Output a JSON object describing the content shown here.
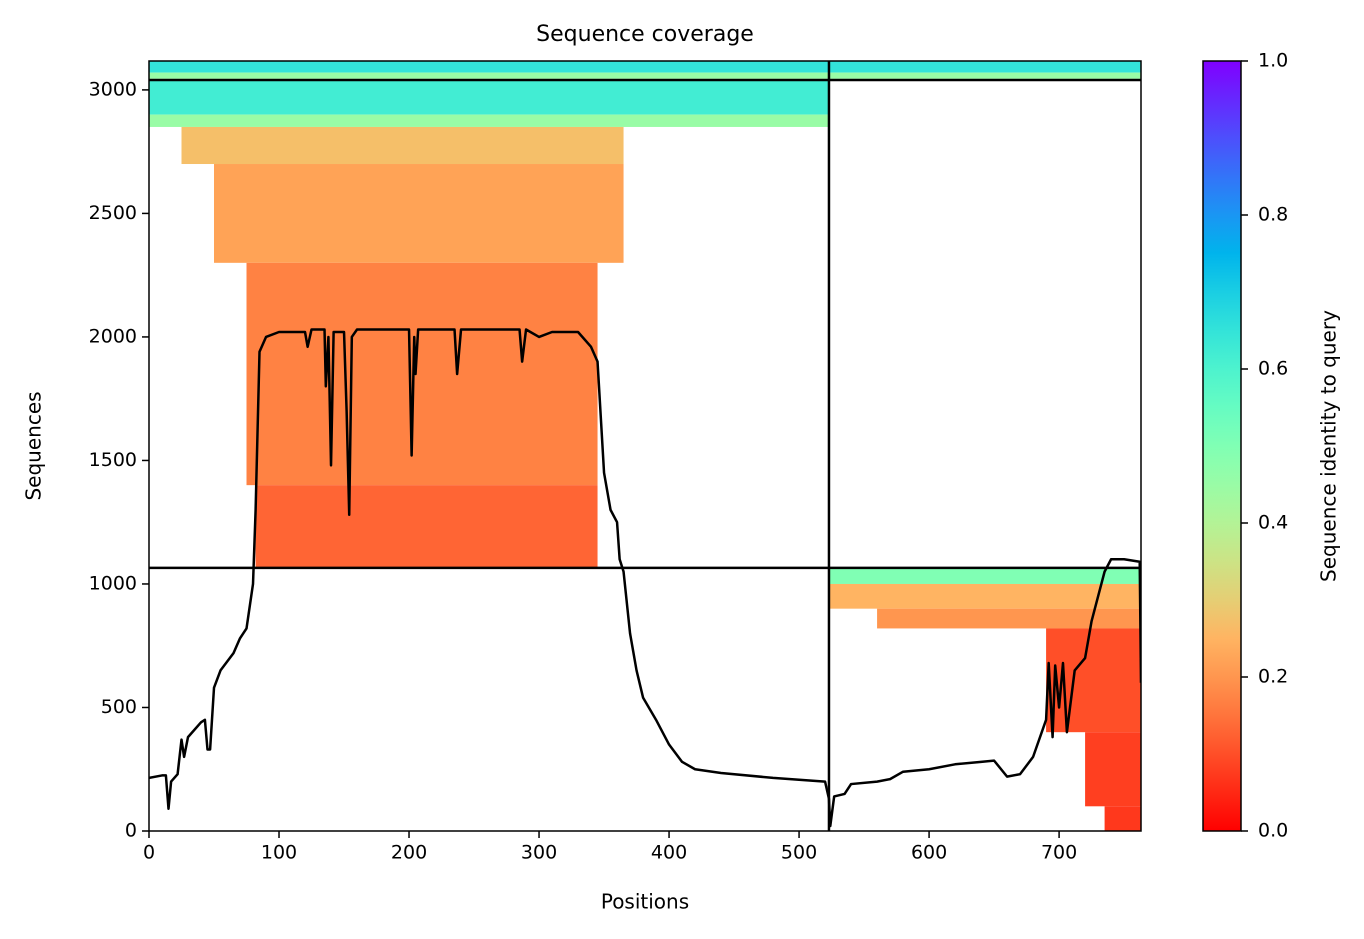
{
  "chart_data": {
    "type": "coverage",
    "title": "Sequence coverage",
    "x_label": "Positions",
    "y_label": "Sequences",
    "xlim": [
      0,
      763
    ],
    "ylim": [
      0,
      3117
    ],
    "xticks": [
      0,
      100,
      200,
      300,
      400,
      500,
      600,
      700
    ],
    "yticks": [
      0,
      500,
      1000,
      1500,
      2000,
      2500,
      3000
    ],
    "line": {
      "color": "#000000",
      "x": [
        0,
        10,
        13,
        15,
        17,
        22,
        25,
        27,
        30,
        40,
        43,
        45,
        47,
        50,
        55,
        65,
        70,
        75,
        80,
        82,
        85,
        90,
        100,
        120,
        122,
        125,
        135,
        136,
        138,
        140,
        142,
        150,
        152,
        154,
        156,
        160,
        200,
        202,
        204,
        205,
        207,
        235,
        237,
        240,
        285,
        287,
        290,
        300,
        310,
        330,
        340,
        345,
        350,
        355,
        360,
        362,
        365,
        370,
        375,
        380,
        390,
        400,
        410,
        420,
        440,
        480,
        520,
        523,
        524,
        527,
        535,
        540,
        560,
        570,
        580,
        600,
        620,
        640,
        650,
        660,
        670,
        680,
        690,
        692,
        695,
        697,
        700,
        703,
        706,
        712,
        720,
        725,
        730,
        735,
        740,
        750,
        762,
        763
      ],
      "values": [
        215,
        225,
        225,
        90,
        200,
        230,
        370,
        300,
        380,
        440,
        450,
        330,
        330,
        580,
        650,
        720,
        780,
        820,
        1000,
        1300,
        1940,
        2000,
        2020,
        2020,
        1960,
        2030,
        2030,
        1800,
        2000,
        1480,
        2020,
        2020,
        1700,
        1280,
        2000,
        2030,
        2030,
        1520,
        2000,
        1850,
        2030,
        2030,
        1850,
        2030,
        2030,
        1900,
        2030,
        2000,
        2020,
        2020,
        1960,
        1900,
        1450,
        1300,
        1250,
        1100,
        1050,
        800,
        650,
        540,
        450,
        350,
        280,
        250,
        235,
        215,
        200,
        130,
        20,
        140,
        150,
        190,
        200,
        210,
        240,
        250,
        270,
        280,
        285,
        220,
        230,
        300,
        450,
        680,
        380,
        670,
        500,
        680,
        400,
        650,
        700,
        850,
        950,
        1050,
        1100,
        1100,
        1090,
        600
      ]
    },
    "blocks": [
      {
        "x0": 0,
        "x1": 763,
        "y0": 3070,
        "y1": 3117,
        "identity": 0.65
      },
      {
        "x0": 0,
        "x1": 763,
        "y0": 3045,
        "y1": 3070,
        "identity": 0.45
      },
      {
        "x0": 0,
        "x1": 523,
        "y0": 2900,
        "y1": 3040,
        "identity": 0.62
      },
      {
        "x0": 0,
        "x1": 523,
        "y0": 2850,
        "y1": 2900,
        "identity": 0.45
      },
      {
        "x0": 25,
        "x1": 365,
        "y0": 2700,
        "y1": 2850,
        "identity": 0.27
      },
      {
        "x0": 50,
        "x1": 365,
        "y0": 2300,
        "y1": 2700,
        "identity": 0.22
      },
      {
        "x0": 75,
        "x1": 345,
        "y0": 1400,
        "y1": 2300,
        "identity": 0.17
      },
      {
        "x0": 82,
        "x1": 345,
        "y0": 1065,
        "y1": 1400,
        "identity": 0.13
      },
      {
        "x0": 523,
        "x1": 763,
        "y0": 1000,
        "y1": 1065,
        "identity": 0.5
      },
      {
        "x0": 523,
        "x1": 763,
        "y0": 900,
        "y1": 1000,
        "identity": 0.25
      },
      {
        "x0": 560,
        "x1": 763,
        "y0": 820,
        "y1": 900,
        "identity": 0.2
      },
      {
        "x0": 690,
        "x1": 763,
        "y0": 400,
        "y1": 820,
        "identity": 0.1
      },
      {
        "x0": 720,
        "x1": 763,
        "y0": 100,
        "y1": 400,
        "identity": 0.08
      },
      {
        "x0": 735,
        "x1": 763,
        "y0": 0,
        "y1": 100,
        "identity": 0.07
      }
    ],
    "dividers": {
      "x": [
        523
      ],
      "y": [
        1065,
        3040
      ]
    },
    "colorbar": {
      "label": "Sequence identity to query",
      "colormap": "rainbow_r",
      "lim": [
        0,
        1
      ],
      "ticks": [
        {
          "value": 0,
          "label": "0.0"
        },
        0.2,
        0.4,
        0.6,
        0.8,
        {
          "value": 1,
          "label": "1.0"
        }
      ]
    }
  }
}
